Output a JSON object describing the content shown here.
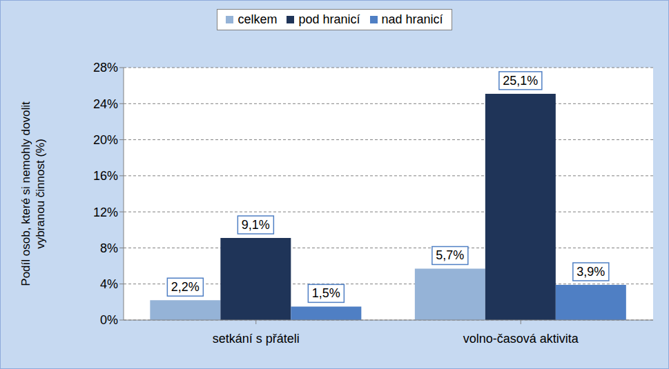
{
  "chart_data": {
    "type": "bar",
    "y_label": "Podíl osob, které si nemohly dovolit vybranou činnost (%)",
    "categories": [
      "setkání s přáteli",
      "volno-časová aktivita"
    ],
    "series": [
      {
        "name": "celkem",
        "color": "#95b3d7",
        "values": [
          2.2,
          5.7
        ],
        "value_labels": [
          "2,2%",
          "5,7%"
        ]
      },
      {
        "name": "pod hranicí",
        "color": "#1f3458",
        "values": [
          9.1,
          25.1
        ],
        "value_labels": [
          "9,1%",
          "25,1%"
        ]
      },
      {
        "name": "nad hranicí",
        "color": "#4f7fc4",
        "values": [
          1.5,
          3.9
        ],
        "value_labels": [
          "1,5%",
          "3,9%"
        ]
      }
    ],
    "ylim": [
      0,
      28
    ],
    "yticks": [
      {
        "value": 0,
        "label": "0%"
      },
      {
        "value": 4,
        "label": "4%"
      },
      {
        "value": 8,
        "label": "8%"
      },
      {
        "value": 12,
        "label": "12%"
      },
      {
        "value": 16,
        "label": "16%"
      },
      {
        "value": 20,
        "label": "20%"
      },
      {
        "value": 24,
        "label": "24%"
      },
      {
        "value": 28,
        "label": "28%"
      }
    ],
    "grid": true,
    "legend": "top",
    "data_labels": true
  }
}
